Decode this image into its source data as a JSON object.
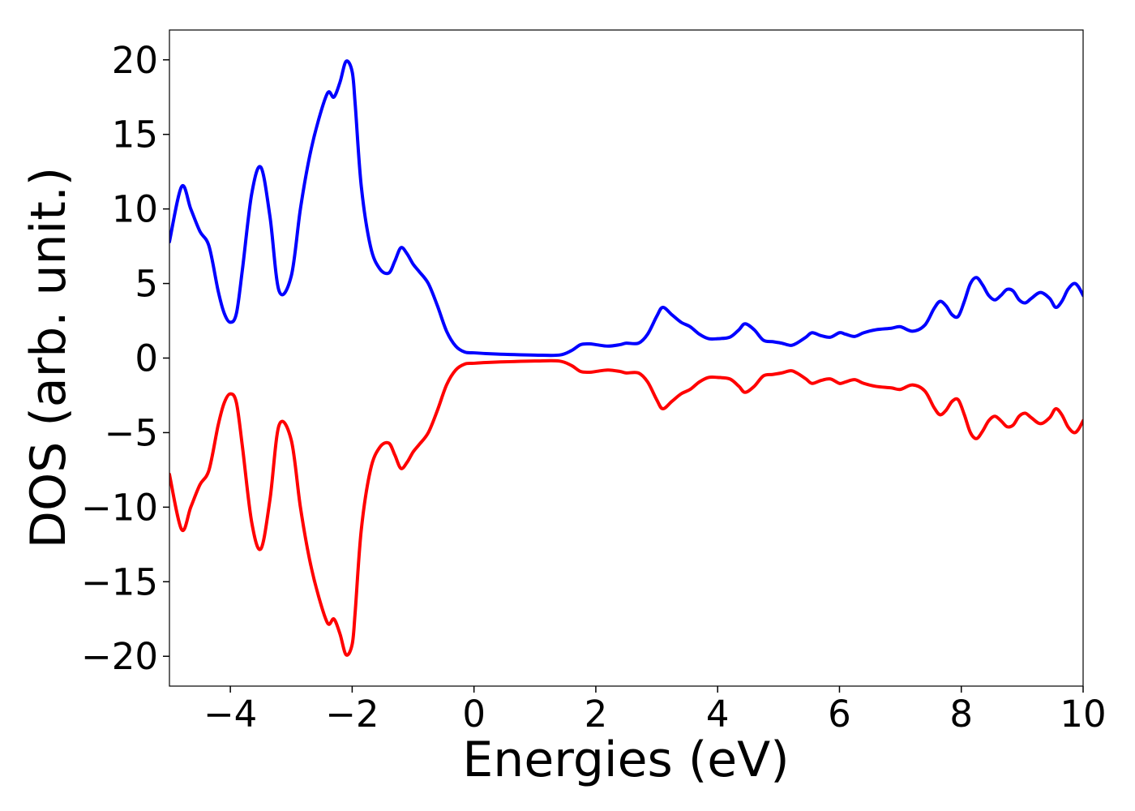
{
  "chart_data": {
    "type": "line",
    "title": "",
    "xlabel": "Energies (eV)",
    "ylabel": "DOS (arb. unit.)",
    "xlim": [
      -5,
      10
    ],
    "ylim": [
      -22,
      22
    ],
    "xticks": [
      -4,
      -2,
      0,
      2,
      4,
      6,
      8,
      10
    ],
    "xtick_labels": [
      "−4",
      "−2",
      "0",
      "2",
      "4",
      "6",
      "8",
      "10"
    ],
    "yticks": [
      20,
      15,
      10,
      5,
      0,
      -5,
      -10,
      -15,
      -20
    ],
    "ytick_labels": [
      "20",
      "15",
      "10",
      "5",
      "0",
      "−5",
      "−10",
      "−15",
      "−20"
    ],
    "grid": false,
    "colors": {
      "spin_up": "#0000ff",
      "spin_down": "#ff0000"
    },
    "x": [
      -5.0,
      -4.8,
      -4.65,
      -4.5,
      -4.35,
      -4.2,
      -4.1,
      -4.0,
      -3.9,
      -3.8,
      -3.65,
      -3.5,
      -3.35,
      -3.2,
      -3.0,
      -2.85,
      -2.7,
      -2.55,
      -2.4,
      -2.3,
      -2.2,
      -2.1,
      -2.0,
      -1.95,
      -1.85,
      -1.7,
      -1.55,
      -1.4,
      -1.3,
      -1.2,
      -1.1,
      -1.0,
      -0.9,
      -0.75,
      -0.6,
      -0.45,
      -0.3,
      -0.15,
      0.0,
      0.2,
      0.5,
      1.0,
      1.4,
      1.6,
      1.75,
      1.9,
      2.0,
      2.2,
      2.4,
      2.5,
      2.7,
      2.85,
      3.0,
      3.1,
      3.25,
      3.4,
      3.55,
      3.7,
      3.85,
      4.0,
      4.2,
      4.35,
      4.45,
      4.6,
      4.75,
      4.9,
      5.05,
      5.2,
      5.3,
      5.45,
      5.55,
      5.7,
      5.85,
      6.0,
      6.1,
      6.25,
      6.4,
      6.6,
      6.85,
      7.0,
      7.2,
      7.4,
      7.55,
      7.65,
      7.75,
      7.85,
      7.95,
      8.05,
      8.15,
      8.25,
      8.35,
      8.45,
      8.55,
      8.65,
      8.75,
      8.85,
      8.95,
      9.05,
      9.15,
      9.3,
      9.45,
      9.55,
      9.65,
      9.75,
      9.85,
      9.92,
      10.0
    ],
    "series": [
      {
        "values": [
          7.8,
          11.5,
          10.0,
          8.5,
          7.5,
          4.5,
          3.0,
          2.4,
          3.0,
          6.0,
          11.0,
          12.8,
          9.5,
          4.5,
          5.5,
          10.0,
          13.5,
          16.0,
          17.8,
          17.5,
          18.5,
          19.9,
          19.2,
          17.0,
          11.5,
          7.5,
          6.0,
          5.7,
          6.5,
          7.4,
          7.0,
          6.3,
          5.8,
          5.0,
          3.5,
          1.8,
          0.8,
          0.4,
          0.35,
          0.3,
          0.25,
          0.2,
          0.2,
          0.5,
          0.9,
          0.95,
          0.9,
          0.8,
          0.9,
          1.0,
          1.0,
          1.6,
          2.8,
          3.4,
          2.9,
          2.4,
          2.1,
          1.6,
          1.3,
          1.3,
          1.4,
          1.9,
          2.3,
          1.9,
          1.2,
          1.1,
          1.0,
          0.85,
          1.0,
          1.4,
          1.7,
          1.5,
          1.4,
          1.7,
          1.6,
          1.45,
          1.7,
          1.9,
          2.0,
          2.1,
          1.8,
          2.2,
          3.3,
          3.8,
          3.5,
          2.9,
          2.8,
          3.8,
          5.0,
          5.4,
          4.9,
          4.2,
          3.9,
          4.2,
          4.6,
          4.5,
          3.9,
          3.7,
          4.0,
          4.4,
          4.0,
          3.4,
          3.8,
          4.6,
          5.0,
          4.8,
          4.2
        ]
      },
      {
        "values": [
          -7.8,
          -11.5,
          -10.0,
          -8.5,
          -7.5,
          -4.5,
          -3.0,
          -2.4,
          -3.0,
          -6.0,
          -11.0,
          -12.8,
          -9.5,
          -4.5,
          -5.5,
          -10.0,
          -13.5,
          -16.0,
          -17.8,
          -17.5,
          -18.5,
          -19.9,
          -19.2,
          -17.0,
          -11.5,
          -7.5,
          -6.0,
          -5.7,
          -6.5,
          -7.4,
          -7.0,
          -6.3,
          -5.8,
          -5.0,
          -3.5,
          -1.8,
          -0.8,
          -0.4,
          -0.35,
          -0.3,
          -0.25,
          -0.2,
          -0.2,
          -0.5,
          -0.9,
          -0.95,
          -0.9,
          -0.8,
          -0.9,
          -1.0,
          -1.0,
          -1.6,
          -2.8,
          -3.4,
          -2.9,
          -2.4,
          -2.1,
          -1.6,
          -1.3,
          -1.3,
          -1.4,
          -1.9,
          -2.3,
          -1.9,
          -1.2,
          -1.1,
          -1.0,
          -0.85,
          -1.0,
          -1.4,
          -1.7,
          -1.5,
          -1.4,
          -1.7,
          -1.6,
          -1.45,
          -1.7,
          -1.9,
          -2.0,
          -2.1,
          -1.8,
          -2.2,
          -3.3,
          -3.8,
          -3.5,
          -2.9,
          -2.8,
          -3.8,
          -5.0,
          -5.4,
          -4.9,
          -4.2,
          -3.9,
          -4.2,
          -4.6,
          -4.5,
          -3.9,
          -3.7,
          -4.0,
          -4.4,
          -4.0,
          -3.4,
          -3.8,
          -4.6,
          -5.0,
          -4.8,
          -4.2
        ]
      }
    ]
  }
}
